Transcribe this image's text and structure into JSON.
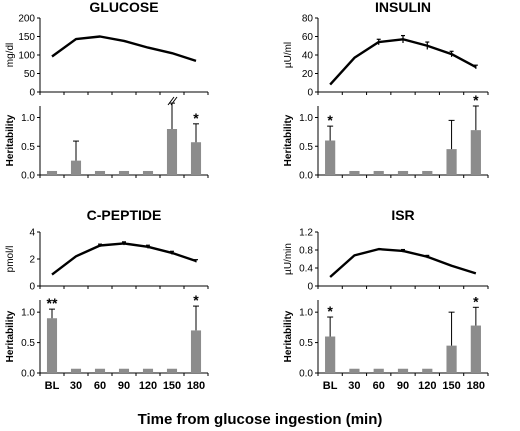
{
  "chart_data": {
    "x_categories": [
      "BL",
      "30",
      "60",
      "90",
      "120",
      "150",
      "180"
    ],
    "xlabel": "Time from glucose ingestion (min)",
    "panels": [
      {
        "title": "GLUCOSE",
        "line": {
          "type": "line",
          "ylabel": "mg/dl",
          "ylim": [
            0,
            200
          ],
          "yticks": [
            "0",
            "50",
            "100",
            "150",
            "200"
          ],
          "values": [
            96,
            143,
            150,
            138,
            120,
            105,
            84
          ],
          "errors": [
            0,
            0,
            0,
            0,
            0,
            0,
            0
          ]
        },
        "heritability": {
          "type": "bar",
          "ylabel": "Heritability",
          "ylim": [
            0,
            1.2
          ],
          "yticks": [
            "0.0",
            "0.5",
            "1.0"
          ],
          "values": [
            0.07,
            0.25,
            0.07,
            0.07,
            0.07,
            0.8,
            0.57
          ],
          "errors": [
            0,
            0.34,
            0,
            0,
            0,
            0.45,
            0.32
          ],
          "significance": [
            "",
            "",
            "",
            "",
            "",
            "",
            "*"
          ],
          "axis_break": true
        }
      },
      {
        "title": "INSULIN",
        "line": {
          "type": "line",
          "ylabel": "µU/ml",
          "ylim": [
            0,
            80
          ],
          "yticks": [
            "0",
            "20",
            "40",
            "60",
            "80"
          ],
          "values": [
            8,
            37,
            54,
            57,
            50,
            41,
            27
          ],
          "errors": [
            0,
            0,
            3,
            4,
            4,
            3,
            2
          ]
        },
        "heritability": {
          "type": "bar",
          "ylabel": "Heritability",
          "ylim": [
            0,
            1.2
          ],
          "yticks": [
            "0.0",
            "0.5",
            "1.0"
          ],
          "values": [
            0.6,
            0.07,
            0.07,
            0.07,
            0.07,
            0.45,
            0.78
          ],
          "errors": [
            0.25,
            0,
            0,
            0,
            0,
            0.5,
            0.42
          ],
          "significance": [
            "*",
            "",
            "",
            "",
            "",
            "",
            "*"
          ]
        }
      },
      {
        "title": "C-PEPTIDE",
        "line": {
          "type": "line",
          "ylabel": "pmol/l",
          "ylim": [
            0,
            4
          ],
          "yticks": [
            "0",
            "2",
            "4"
          ],
          "values": [
            0.85,
            2.2,
            3.0,
            3.15,
            2.9,
            2.45,
            1.85
          ],
          "errors": [
            0,
            0,
            0.1,
            0.12,
            0.12,
            0.12,
            0.1
          ]
        },
        "heritability": {
          "type": "bar",
          "ylabel": "Heritability",
          "ylim": [
            0,
            1.2
          ],
          "yticks": [
            "0.0",
            "0.5",
            "1.0"
          ],
          "values": [
            0.9,
            0.07,
            0.07,
            0.07,
            0.07,
            0.07,
            0.7
          ],
          "errors": [
            0.15,
            0,
            0,
            0,
            0,
            0,
            0.4
          ],
          "significance": [
            "**",
            "",
            "",
            "",
            "",
            "",
            "*"
          ]
        }
      },
      {
        "title": "ISR",
        "line": {
          "type": "line",
          "ylabel": "µU/min",
          "ylim": [
            0,
            1.2
          ],
          "yticks": [
            "0",
            "0.4",
            "0.8",
            "1.2"
          ],
          "values": [
            0.2,
            0.68,
            0.82,
            0.78,
            0.65,
            0.45,
            0.28
          ],
          "errors": [
            0,
            0,
            0,
            0.03,
            0.03,
            0,
            0
          ]
        },
        "heritability": {
          "type": "bar",
          "ylabel": "Heritability",
          "ylim": [
            0,
            1.2
          ],
          "yticks": [
            "0.0",
            "0.5",
            "1.0"
          ],
          "values": [
            0.6,
            0.07,
            0.07,
            0.07,
            0.07,
            0.45,
            0.78
          ],
          "errors": [
            0.32,
            0,
            0,
            0,
            0,
            0.55,
            0.3
          ],
          "significance": [
            "*",
            "",
            "",
            "",
            "",
            "",
            "*"
          ]
        }
      }
    ],
    "colors": {
      "line": "#000000",
      "bar": "#8c8c8c",
      "axis": "#000000"
    }
  }
}
